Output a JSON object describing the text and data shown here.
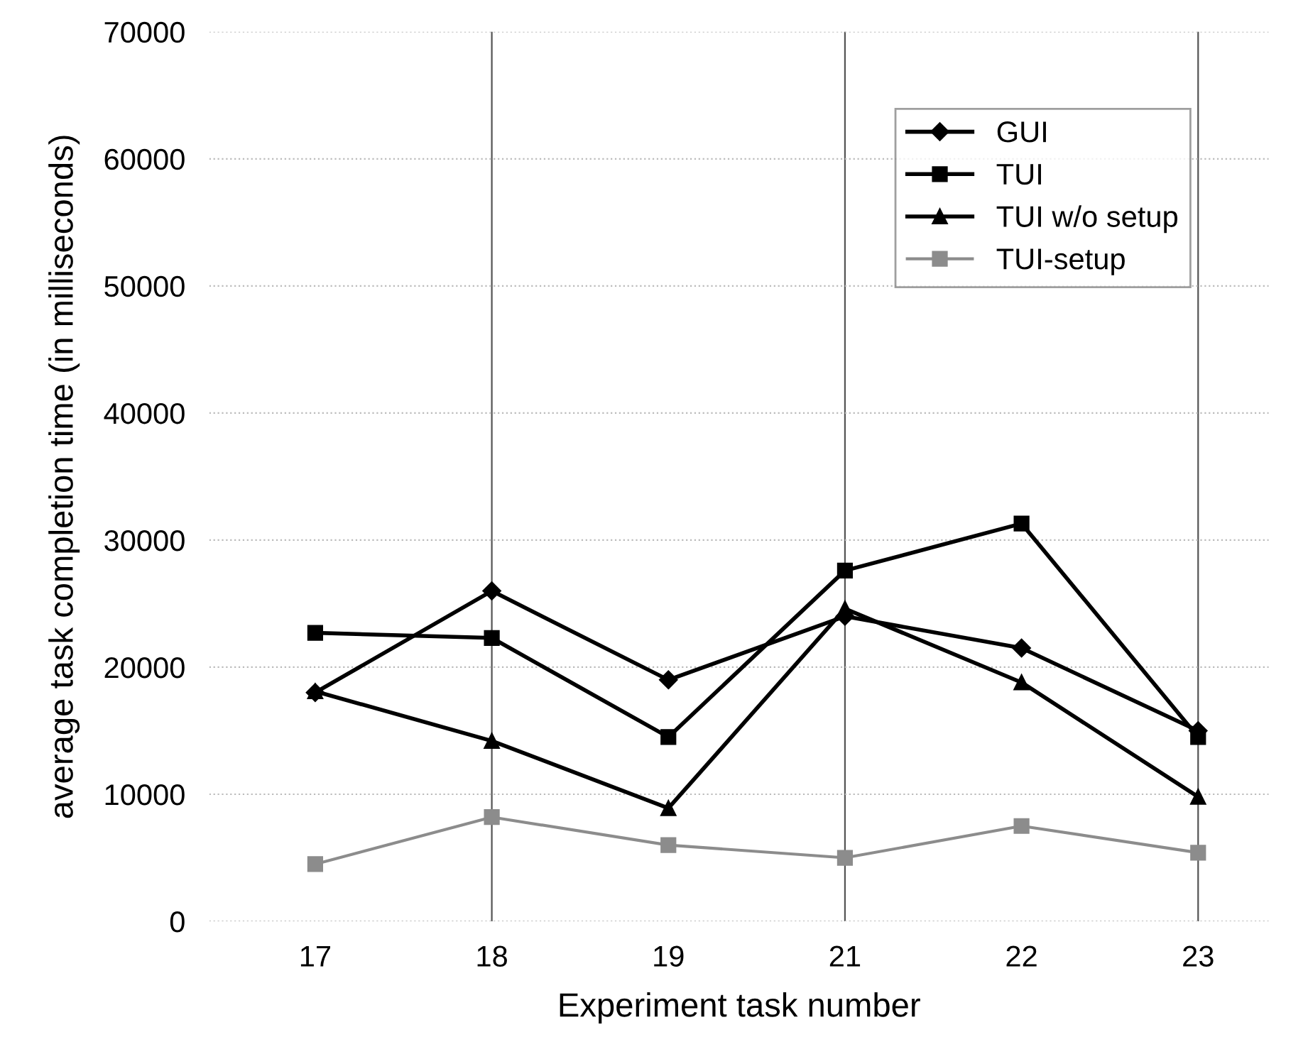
{
  "chart_data": {
    "type": "line",
    "xlabel": "Experiment task number",
    "ylabel": "average task completion time (in milliseconds)",
    "categories": [
      "17",
      "18",
      "19",
      "21",
      "22",
      "23"
    ],
    "series": [
      {
        "name": "GUI",
        "color": "#000000",
        "marker": "diamond",
        "values": [
          18000,
          26000,
          19000,
          24000,
          21500,
          15000
        ]
      },
      {
        "name": "TUI",
        "color": "#000000",
        "marker": "square",
        "values": [
          22700,
          22300,
          14500,
          27600,
          31300,
          14500
        ]
      },
      {
        "name": "TUI w/o setup",
        "color": "#000000",
        "marker": "triangle",
        "values": [
          18100,
          14200,
          8900,
          24600,
          18800,
          9800
        ]
      },
      {
        "name": "TUI-setup",
        "color": "#8c8c8c",
        "marker": "square",
        "values": [
          4500,
          8200,
          6000,
          5000,
          7500,
          5400
        ]
      }
    ],
    "ylim": [
      0,
      70000
    ],
    "yticks": [
      0,
      10000,
      20000,
      30000,
      40000,
      50000,
      60000,
      70000
    ],
    "grid": "y",
    "legend": "top right",
    "ref_lines": [
      {
        "axis": "x",
        "value": "18",
        "color": "#555555"
      },
      {
        "axis": "x",
        "value": "21",
        "color": "#555555"
      },
      {
        "axis": "x",
        "value": "23",
        "color": "#555555"
      }
    ]
  }
}
